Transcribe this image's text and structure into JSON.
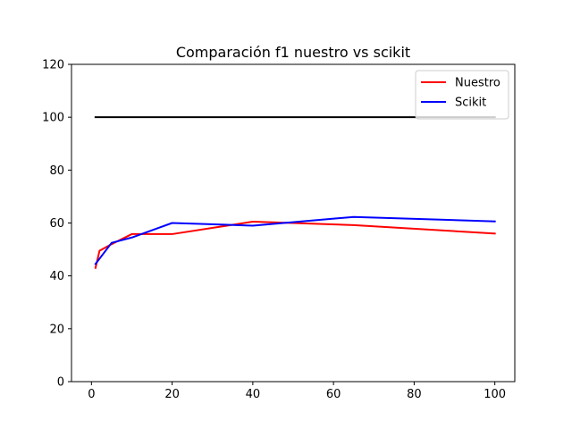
{
  "chart_data": {
    "type": "line",
    "title": "Comparación f1 nuestro vs scikit",
    "xlabel": "",
    "ylabel": "",
    "xlim": [
      -4.95,
      104.95
    ],
    "ylim": [
      0,
      120
    ],
    "x_ticks": [
      0,
      20,
      40,
      60,
      80,
      100
    ],
    "y_ticks": [
      0,
      20,
      40,
      60,
      80,
      100,
      120
    ],
    "grid": false,
    "legend_position": "top-right",
    "series": [
      {
        "name": "Nuestro",
        "color": "#ff0000",
        "x": [
          1,
          2,
          5,
          10,
          20,
          40,
          65,
          100
        ],
        "y": [
          43.0,
          49.5,
          52.0,
          55.8,
          55.8,
          60.5,
          59.2,
          56.0
        ],
        "in_legend": true
      },
      {
        "name": "Scikit",
        "color": "#0000ff",
        "x": [
          1,
          5,
          10,
          20,
          40,
          65,
          100
        ],
        "y": [
          44.5,
          52.5,
          54.5,
          60.0,
          59.0,
          62.3,
          60.6
        ],
        "in_legend": true
      },
      {
        "name": "",
        "color": "#000000",
        "x": [
          1,
          100
        ],
        "y": [
          100,
          100
        ],
        "in_legend": false
      }
    ]
  }
}
